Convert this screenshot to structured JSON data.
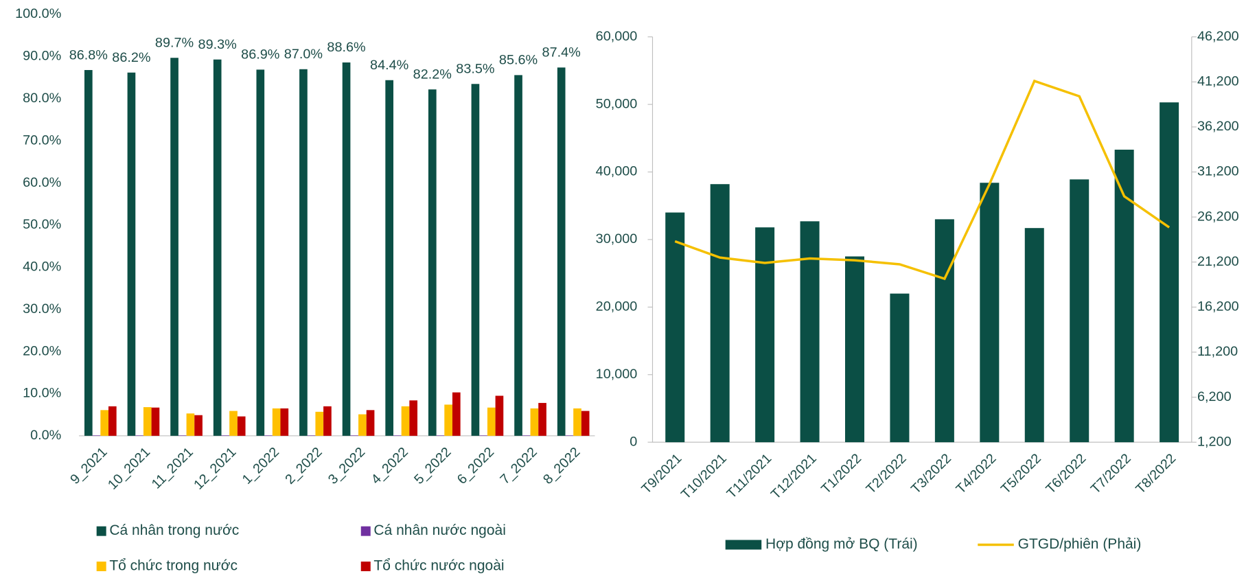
{
  "chart_data": [
    {
      "type": "bar",
      "categories": [
        "9_2021",
        "10_2021",
        "11_2021",
        "12_2021",
        "1_2022",
        "2_2022",
        "3_2022",
        "4_2022",
        "5_2022",
        "6_2022",
        "7_2022",
        "8_2022"
      ],
      "series": [
        {
          "name": "Cá nhân trong nước",
          "color": "#0b4f45",
          "values": [
            86.8,
            86.2,
            89.7,
            89.3,
            86.9,
            87.0,
            88.6,
            84.4,
            82.2,
            83.5,
            85.6,
            87.4
          ],
          "value_labels": [
            "86.8%",
            "86.2%",
            "89.7%",
            "89.3%",
            "86.9%",
            "87.0%",
            "88.6%",
            "84.4%",
            "82.2%",
            "83.5%",
            "85.6%",
            "87.4%"
          ]
        },
        {
          "name": "Cá nhân nước ngoài",
          "color": "#7030a0",
          "values": [
            0.1,
            0.1,
            0.1,
            0.1,
            0.1,
            0.1,
            0.1,
            0.1,
            0.1,
            0.1,
            0.1,
            0.1
          ]
        },
        {
          "name": "Tổ chức trong nước",
          "color": "#ffc000",
          "values": [
            6.1,
            6.8,
            5.3,
            5.9,
            6.5,
            5.7,
            5.1,
            7.0,
            7.4,
            6.7,
            6.5,
            6.5
          ]
        },
        {
          "name": "Tổ chức nước ngoài",
          "color": "#c00000",
          "values": [
            7.0,
            6.7,
            4.9,
            4.6,
            6.5,
            7.0,
            6.1,
            8.4,
            10.3,
            9.5,
            7.8,
            5.9
          ]
        }
      ],
      "ylim": [
        0,
        100
      ],
      "yticks": [
        {
          "value": 0,
          "label": "0.0%"
        },
        {
          "value": 10,
          "label": "10.0%"
        },
        {
          "value": 20,
          "label": "20.0%"
        },
        {
          "value": 30,
          "label": "30.0%"
        },
        {
          "value": 40,
          "label": "40.0%"
        },
        {
          "value": 50,
          "label": "50.0%"
        },
        {
          "value": 60,
          "label": "60.0%"
        },
        {
          "value": 70,
          "label": "70.0%"
        },
        {
          "value": 80,
          "label": "80.0%"
        },
        {
          "value": 90,
          "label": "90.0%"
        },
        {
          "value": 100,
          "label": "100.0%"
        }
      ]
    },
    {
      "type": "bar",
      "categories": [
        "T9/2021",
        "T10/2021",
        "T11/2021",
        "T12/2021",
        "T1/2022",
        "T2/2022",
        "T3/2022",
        "T4/2022",
        "T5/2022",
        "T6/2022",
        "T7/2022",
        "T8/2022"
      ],
      "series": [
        {
          "name": "Hợp đồng mở BQ (Trái)",
          "color": "#0b4f45",
          "values": [
            34000,
            38200,
            31800,
            32700,
            27500,
            22000,
            33000,
            38400,
            31700,
            38900,
            43300,
            50300
          ]
        },
        {
          "name": "GTGD/phiên (Phải)",
          "color": "#f5c000",
          "type": "line",
          "axis": "y2",
          "values": [
            23500,
            21700,
            21100,
            21600,
            21400,
            20950,
            19350,
            29850,
            41300,
            39600,
            28500,
            25050
          ]
        }
      ],
      "ylim": [
        0,
        60000
      ],
      "yticks": [
        0,
        {
          "value": 10000,
          "label": "10,000"
        },
        {
          "value": 20000,
          "label": "20,000"
        },
        {
          "value": 30000,
          "label": "30,000"
        },
        {
          "value": 40000,
          "label": "40,000"
        },
        {
          "value": 50000,
          "label": "50,000"
        },
        {
          "value": 60000,
          "label": "60,000"
        }
      ],
      "y2lim": [
        1200,
        46200
      ],
      "y2ticks": [
        {
          "value": 1200,
          "label": "1,200"
        },
        {
          "value": 6200,
          "label": "6,200"
        },
        {
          "value": 11200,
          "label": "11,200"
        },
        {
          "value": 16200,
          "label": "16,200"
        },
        {
          "value": 21200,
          "label": "21,200"
        },
        {
          "value": 26200,
          "label": "26,200"
        },
        {
          "value": 31200,
          "label": "31,200"
        },
        {
          "value": 36200,
          "label": "36,200"
        },
        {
          "value": 41200,
          "label": "41,200"
        },
        {
          "value": 46200,
          "label": "46,200"
        }
      ]
    }
  ]
}
